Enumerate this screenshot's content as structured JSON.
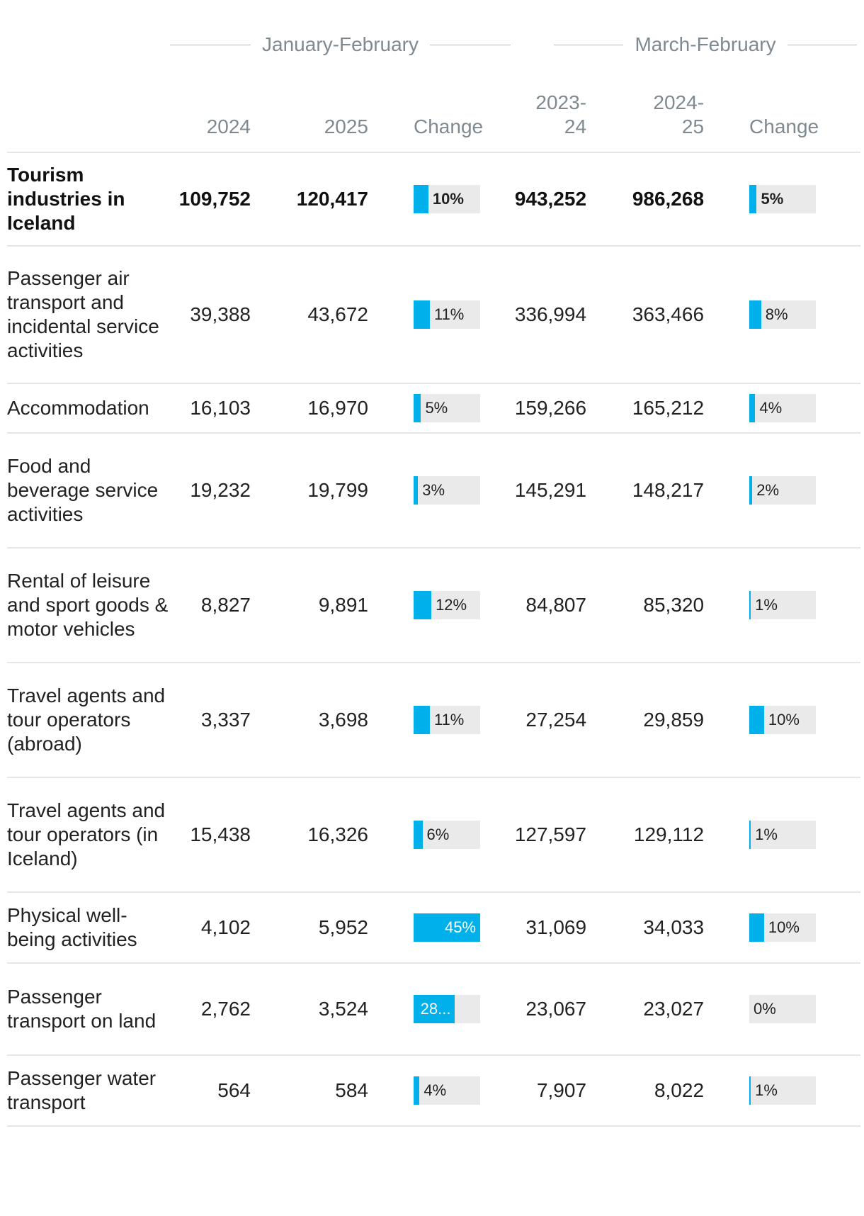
{
  "header": {
    "group1": "January-February",
    "group2": "March-February",
    "columns": [
      "2024",
      "2025",
      "Change",
      "2023-\n24",
      "2024-\n25",
      "Change"
    ]
  },
  "chart_data": {
    "type": "table",
    "title": "",
    "bar_color": "#00b0ea",
    "track_color": "#eaeaea",
    "rows": [
      {
        "name": "Tourism industries in Iceland",
        "bold": true,
        "jf2024": "109,752",
        "jf2025": "120,417",
        "jf_change": 10,
        "jf_change_label": "10%",
        "mf2324": "943,252",
        "mf2425": "986,268",
        "mf_change": 5,
        "mf_change_label": "5%"
      },
      {
        "name": "Passenger air transport and incidental service activities",
        "bold": false,
        "jf2024": "39,388",
        "jf2025": "43,672",
        "jf_change": 11,
        "jf_change_label": "11%",
        "mf2324": "336,994",
        "mf2425": "363,466",
        "mf_change": 8,
        "mf_change_label": "8%"
      },
      {
        "name": "Accommodation",
        "bold": false,
        "jf2024": "16,103",
        "jf2025": "16,970",
        "jf_change": 5,
        "jf_change_label": "5%",
        "mf2324": "159,266",
        "mf2425": "165,212",
        "mf_change": 4,
        "mf_change_label": "4%"
      },
      {
        "name": "Food and beverage service activities",
        "bold": false,
        "jf2024": "19,232",
        "jf2025": "19,799",
        "jf_change": 3,
        "jf_change_label": "3%",
        "mf2324": "145,291",
        "mf2425": "148,217",
        "mf_change": 2,
        "mf_change_label": "2%"
      },
      {
        "name": "Rental of leisure and sport goods & motor vehicles",
        "bold": false,
        "jf2024": "8,827",
        "jf2025": "9,891",
        "jf_change": 12,
        "jf_change_label": "12%",
        "mf2324": "84,807",
        "mf2425": "85,320",
        "mf_change": 1,
        "mf_change_label": "1%"
      },
      {
        "name": "Travel agents and tour operators (abroad)",
        "bold": false,
        "jf2024": "3,337",
        "jf2025": "3,698",
        "jf_change": 11,
        "jf_change_label": "11%",
        "mf2324": "27,254",
        "mf2425": "29,859",
        "mf_change": 10,
        "mf_change_label": "10%"
      },
      {
        "name": "Travel agents and tour operators (in Iceland)",
        "bold": false,
        "jf2024": "15,438",
        "jf2025": "16,326",
        "jf_change": 6,
        "jf_change_label": "6%",
        "mf2324": "127,597",
        "mf2425": "129,112",
        "mf_change": 1,
        "mf_change_label": "1%"
      },
      {
        "name": "Physical well-being activities",
        "bold": false,
        "jf2024": "4,102",
        "jf2025": "5,952",
        "jf_change": 45,
        "jf_change_label": "45%",
        "mf2324": "31,069",
        "mf2425": "34,033",
        "mf_change": 10,
        "mf_change_label": "10%"
      },
      {
        "name": "Passenger transport on land",
        "bold": false,
        "jf2024": "2,762",
        "jf2025": "3,524",
        "jf_change": 28,
        "jf_change_label": "28...",
        "mf2324": "23,067",
        "mf2425": "23,027",
        "mf_change": 0,
        "mf_change_label": "0%"
      },
      {
        "name": "Passenger water transport",
        "bold": false,
        "jf2024": "564",
        "jf2025": "584",
        "jf_change": 4,
        "jf_change_label": "4%",
        "mf2324": "7,907",
        "mf2425": "8,022",
        "mf_change": 1,
        "mf_change_label": "1%"
      }
    ]
  }
}
